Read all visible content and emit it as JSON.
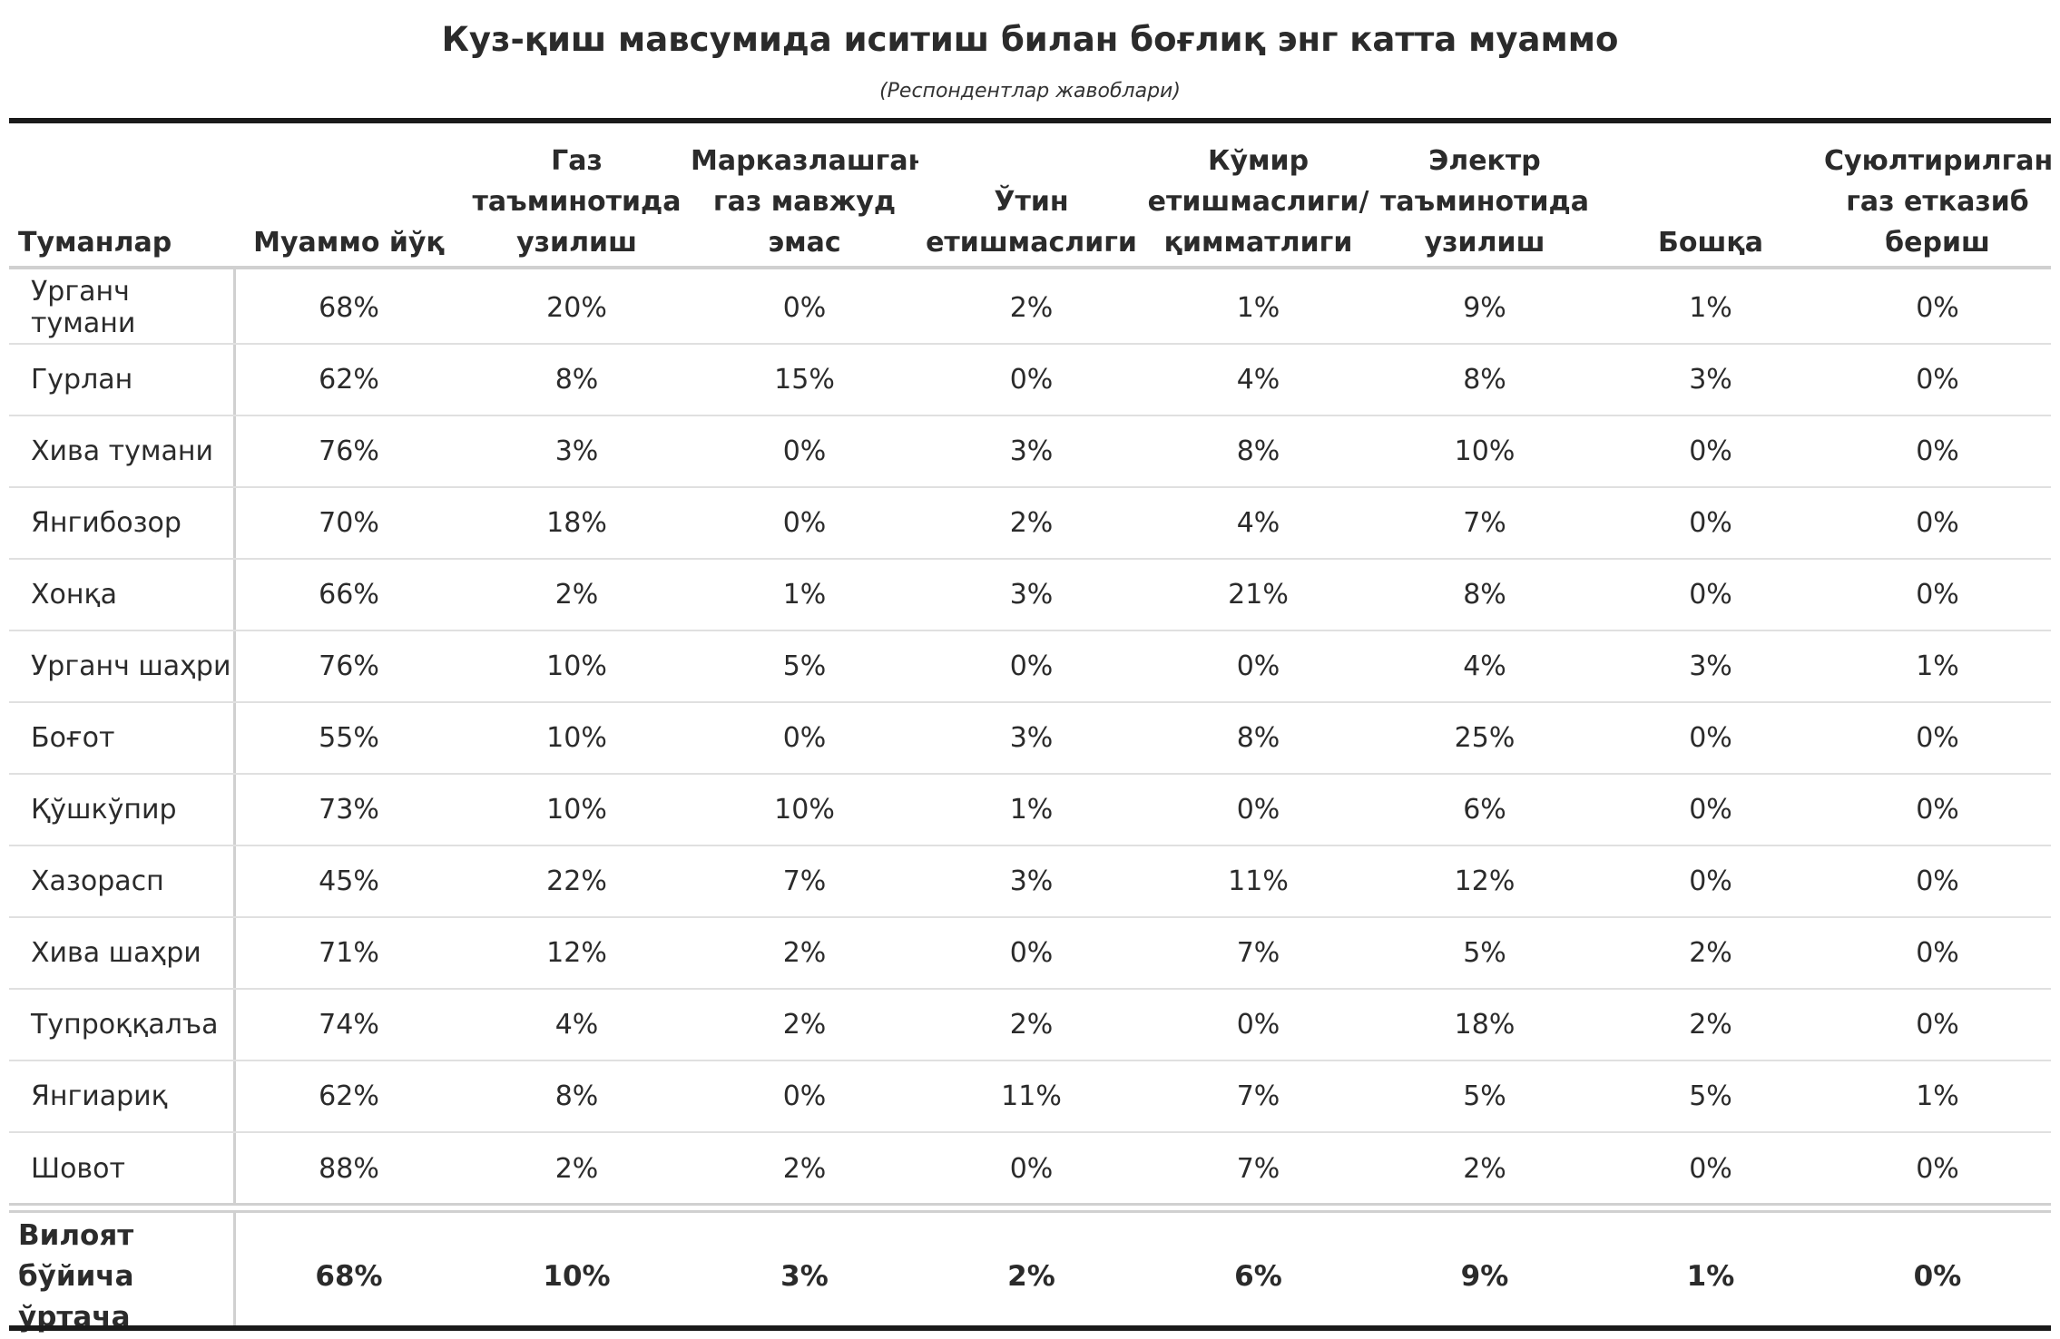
{
  "title": "Куз-қиш мавсумида иситиш билан боғлиқ энг катта муаммо",
  "subtitle": "(Респондентлар жавоблари)",
  "chart_data": {
    "type": "table",
    "title": "Куз-қиш мавсумида иситиш билан боғлиқ энг катта муаммо",
    "subtitle": "(Респондентлар жавоблари)",
    "columns": [
      "Туманлар",
      "Муаммо йўқ",
      "Газ таъминотида узилиш",
      "Марказлашган газ мавжуд эмас",
      "Ўтин етишмаслиги",
      "Кўмир етишмаслиги/ қимматлиги",
      "Электр таъминотида узилиш",
      "Бошқа",
      "Суюлтирилган газ етказиб бериш"
    ],
    "header_lines": [
      [
        "Туманлар"
      ],
      [
        "Муаммо йўқ"
      ],
      [
        "Газ",
        "таъминотида",
        "узилиш"
      ],
      [
        "Марказлашган",
        "газ мавжуд",
        "эмас"
      ],
      [
        "Ўтин",
        "етишмаслиги"
      ],
      [
        "Кўмир",
        "етишмаслиги/",
        "қимматлиги"
      ],
      [
        "Электр",
        "таъминотида",
        "узилиш"
      ],
      [
        "Бошқа"
      ],
      [
        "Суюлтирилган",
        "газ етказиб",
        "бериш"
      ]
    ],
    "rows": [
      [
        "Урганч тумани",
        "68%",
        "20%",
        "0%",
        "2%",
        "1%",
        "9%",
        "1%",
        "0%"
      ],
      [
        "Гурлан",
        "62%",
        "8%",
        "15%",
        "0%",
        "4%",
        "8%",
        "3%",
        "0%"
      ],
      [
        "Хива тумани",
        "76%",
        "3%",
        "0%",
        "3%",
        "8%",
        "10%",
        "0%",
        "0%"
      ],
      [
        "Янгибозор",
        "70%",
        "18%",
        "0%",
        "2%",
        "4%",
        "7%",
        "0%",
        "0%"
      ],
      [
        "Хонқа",
        "66%",
        "2%",
        "1%",
        "3%",
        "21%",
        "8%",
        "0%",
        "0%"
      ],
      [
        "Урганч шаҳри",
        "76%",
        "10%",
        "5%",
        "0%",
        "0%",
        "4%",
        "3%",
        "1%"
      ],
      [
        "Боғот",
        "55%",
        "10%",
        "0%",
        "3%",
        "8%",
        "25%",
        "0%",
        "0%"
      ],
      [
        "Қўшкўпир",
        "73%",
        "10%",
        "10%",
        "1%",
        "0%",
        "6%",
        "0%",
        "0%"
      ],
      [
        "Хазорасп",
        "45%",
        "22%",
        "7%",
        "3%",
        "11%",
        "12%",
        "0%",
        "0%"
      ],
      [
        "Хива шаҳри",
        "71%",
        "12%",
        "2%",
        "0%",
        "7%",
        "5%",
        "2%",
        "0%"
      ],
      [
        "Тупроққалъа",
        "74%",
        "4%",
        "2%",
        "2%",
        "0%",
        "18%",
        "2%",
        "0%"
      ],
      [
        "Янгиариқ",
        "62%",
        "8%",
        "0%",
        "11%",
        "7%",
        "5%",
        "5%",
        "1%"
      ],
      [
        "Шовот",
        "88%",
        "2%",
        "2%",
        "0%",
        "7%",
        "2%",
        "0%",
        "0%"
      ]
    ],
    "summary_label_lines": [
      "Вилоят",
      "бўйича ўртача"
    ],
    "summary": [
      "Вилоят бўйича ўртача",
      "68%",
      "10%",
      "3%",
      "2%",
      "6%",
      "9%",
      "1%",
      "0%"
    ]
  }
}
